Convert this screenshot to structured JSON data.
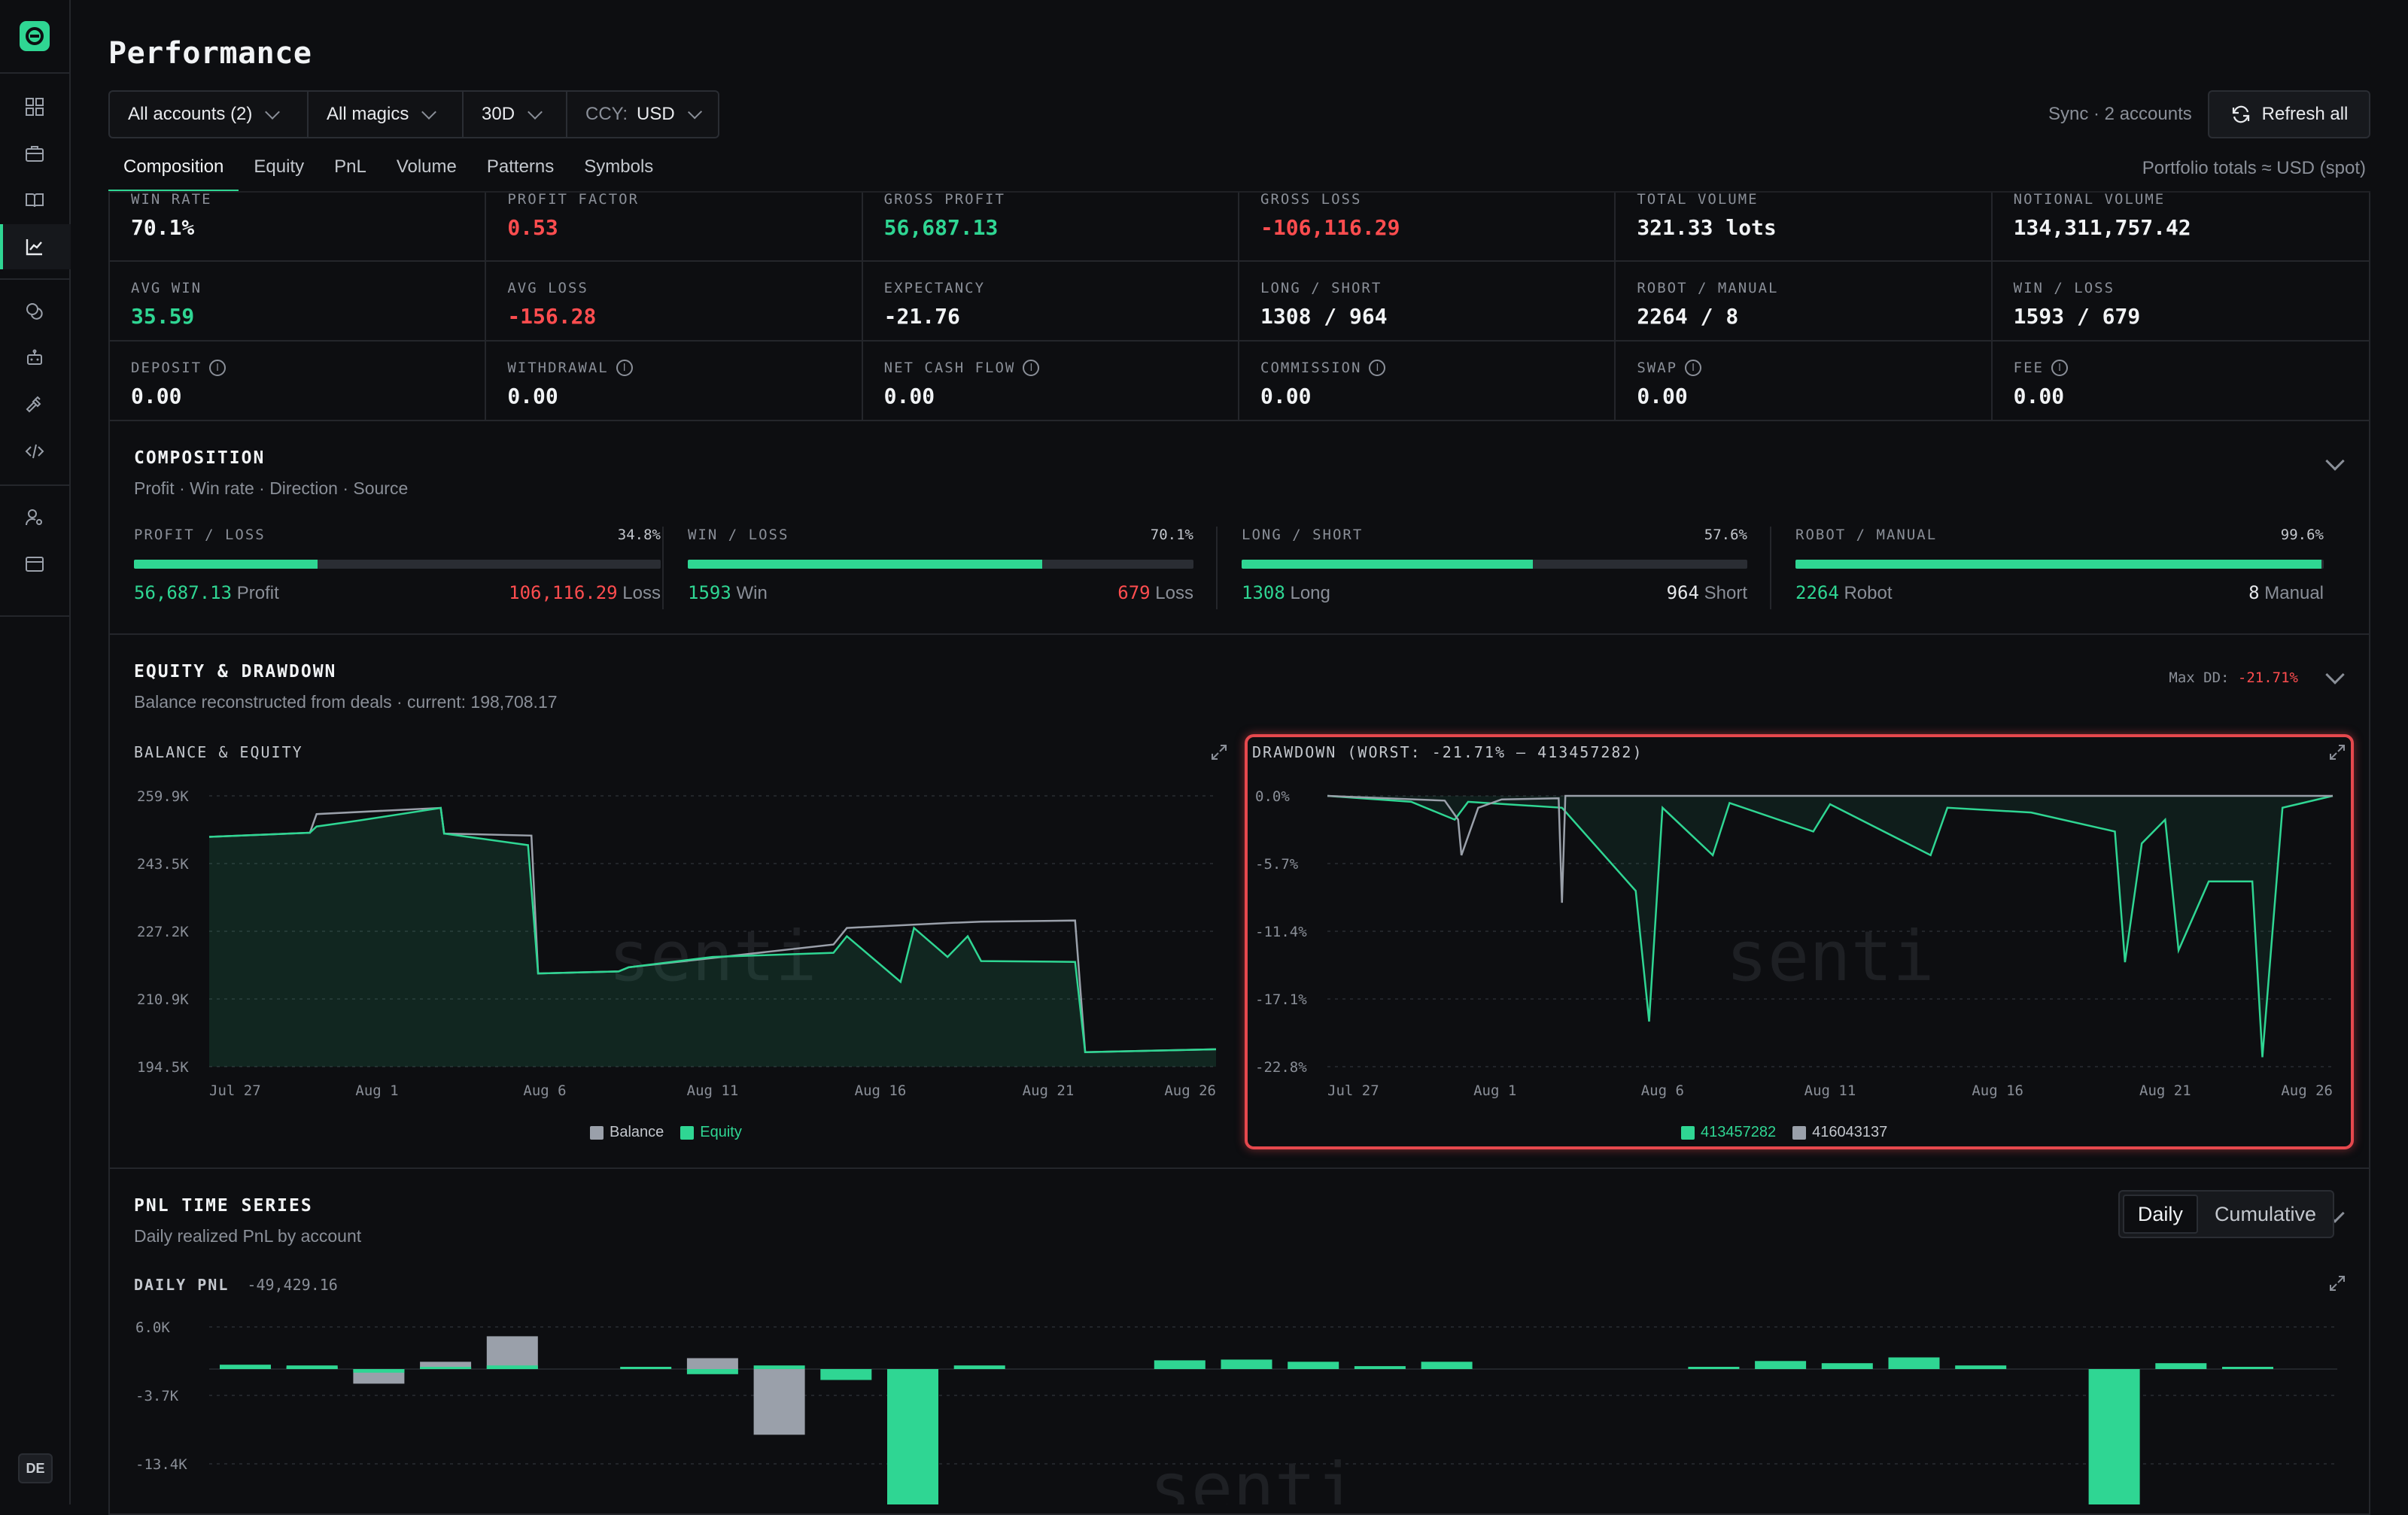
{
  "colors": {
    "accent": "#2fd693",
    "loss": "#ff4d4f",
    "balance": "#9aa0aa",
    "highlight": "#e5484d"
  },
  "sidebar": {
    "icons": [
      "dashboard-icon",
      "briefcase-icon",
      "book-icon",
      "chart-line-icon",
      "coins-icon",
      "robot-icon",
      "hammer-icon",
      "code-icon",
      "user-settings-icon",
      "window-icon"
    ],
    "active": "chart-line-icon",
    "locale_badge": "DE"
  },
  "header": {
    "title": "Performance",
    "filters": {
      "accounts": "All accounts (2)",
      "magics": "All magics",
      "period": "30D",
      "ccy_label": "CCY:",
      "ccy_value": "USD"
    },
    "sync_text": "Sync · 2 accounts",
    "refresh_label": "Refresh all"
  },
  "tabs": [
    "Composition",
    "Equity",
    "PnL",
    "Volume",
    "Patterns",
    "Symbols"
  ],
  "active_tab": "Composition",
  "portfolio_note": "Portfolio totals ≈ USD (spot)",
  "stats": [
    {
      "label": "WIN RATE",
      "value": "70.1%",
      "tone": ""
    },
    {
      "label": "PROFIT FACTOR",
      "value": "0.53",
      "tone": "red"
    },
    {
      "label": "GROSS PROFIT",
      "value": "56,687.13",
      "tone": "green"
    },
    {
      "label": "GROSS LOSS",
      "value": "-106,116.29",
      "tone": "red"
    },
    {
      "label": "TOTAL VOLUME",
      "value": "321.33 lots",
      "tone": ""
    },
    {
      "label": "NOTIONAL VOLUME",
      "value": "134,311,757.42",
      "tone": ""
    },
    {
      "label": "AVG WIN",
      "value": "35.59",
      "tone": "green"
    },
    {
      "label": "AVG LOSS",
      "value": "-156.28",
      "tone": "red"
    },
    {
      "label": "EXPECTANCY",
      "value": "-21.76",
      "tone": ""
    },
    {
      "label": "LONG / SHORT",
      "value": "1308 / 964",
      "tone": ""
    },
    {
      "label": "ROBOT / MANUAL",
      "value": "2264 / 8",
      "tone": ""
    },
    {
      "label": "WIN / LOSS",
      "value": "1593 / 679",
      "tone": ""
    },
    {
      "label": "DEPOSIT",
      "value": "0.00",
      "tone": "",
      "info": true
    },
    {
      "label": "WITHDRAWAL",
      "value": "0.00",
      "tone": "",
      "info": true
    },
    {
      "label": "NET CASH FLOW",
      "value": "0.00",
      "tone": "",
      "info": true
    },
    {
      "label": "COMMISSION",
      "value": "0.00",
      "tone": "",
      "info": true
    },
    {
      "label": "SWAP",
      "value": "0.00",
      "tone": "",
      "info": true
    },
    {
      "label": "FEE",
      "value": "0.00",
      "tone": "",
      "info": true
    }
  ],
  "composition": {
    "title": "COMPOSITION",
    "subtitle": "Profit · Win rate · Direction · Source",
    "cards": [
      {
        "label": "PROFIT / LOSS",
        "pct": "34.8%",
        "fill": 0.348,
        "left_num": "56,687.13",
        "left_text": "Profit",
        "right_num": "106,116.29",
        "right_text": "Loss",
        "right_red": true
      },
      {
        "label": "WIN / LOSS",
        "pct": "70.1%",
        "fill": 0.701,
        "left_num": "1593",
        "left_text": "Win",
        "right_num": "679",
        "right_text": "Loss",
        "right_red": true
      },
      {
        "label": "LONG / SHORT",
        "pct": "57.6%",
        "fill": 0.576,
        "left_num": "1308",
        "left_text": "Long",
        "right_num": "964",
        "right_text": "Short",
        "right_red": false
      },
      {
        "label": "ROBOT / MANUAL",
        "pct": "99.6%",
        "fill": 0.996,
        "left_num": "2264",
        "left_text": "Robot",
        "right_num": "8",
        "right_text": "Manual",
        "right_red": false
      }
    ]
  },
  "equity": {
    "title": "EQUITY & DRAWDOWN",
    "subtitle": "Balance reconstructed from deals · current: 198,708.17",
    "maxdd_label": "Max DD:",
    "maxdd_value": "-21.71%"
  },
  "watermark": "senti",
  "chart_data": [
    {
      "type": "area",
      "title": "BALANCE & EQUITY",
      "x_ticks": [
        "Jul 27",
        "Aug 1",
        "Aug 6",
        "Aug 11",
        "Aug 16",
        "Aug 21",
        "Aug 26"
      ],
      "y_ticks": [
        "259.9K",
        "243.5K",
        "227.2K",
        "210.9K",
        "194.5K"
      ],
      "ylim": [
        194500,
        259900
      ],
      "legend": "bottom-center",
      "series": [
        {
          "name": "Balance",
          "color": "#9aa0aa",
          "x_days": [
            0,
            3,
            3.2,
            6.9,
            7,
            9.6,
            9.8,
            12.2,
            12.5,
            18.6,
            19,
            22,
            23,
            25.8,
            26.1,
            30
          ],
          "values": [
            250000,
            251000,
            255500,
            257000,
            250800,
            250300,
            217000,
            217500,
            218500,
            224000,
            228000,
            229200,
            229500,
            229800,
            198000,
            198700
          ]
        },
        {
          "name": "Equity",
          "color": "#2fd693",
          "x_days": [
            0,
            3,
            3.2,
            4.5,
            6.9,
            7,
            9.5,
            9.8,
            12.2,
            12.5,
            15,
            18.6,
            19,
            20.6,
            21,
            22,
            22.6,
            23,
            25.8,
            26.1,
            30
          ],
          "values": [
            250000,
            251000,
            252500,
            254000,
            257000,
            250800,
            248000,
            217000,
            217500,
            218500,
            221000,
            222000,
            226000,
            215000,
            228000,
            221000,
            226000,
            220000,
            219800,
            198000,
            198700
          ]
        }
      ]
    },
    {
      "type": "line",
      "title": "DRAWDOWN (WORST: -21.71% — 413457282)",
      "x_ticks": [
        "Jul 27",
        "Aug 1",
        "Aug 6",
        "Aug 11",
        "Aug 16",
        "Aug 21",
        "Aug 26"
      ],
      "y_ticks": [
        "0.0%",
        "-5.7%",
        "-11.4%",
        "-17.1%",
        "-22.8%"
      ],
      "ylim": [
        -22.8,
        0
      ],
      "legend": "bottom-center",
      "series": [
        {
          "name": "413457282",
          "color": "#2fd693",
          "x_days": [
            0,
            2.5,
            3.8,
            4.2,
            7,
            9.2,
            9.6,
            10,
            11.5,
            12,
            14.5,
            15,
            18,
            18.5,
            21,
            23.5,
            23.8,
            24.3,
            25,
            25.4,
            26.3,
            27.6,
            27.9,
            28.5,
            30
          ],
          "values": [
            0,
            -0.5,
            -2,
            -0.5,
            -1,
            -8,
            -19,
            -1,
            -5,
            -0.6,
            -3,
            -0.7,
            -5,
            -1,
            -1.4,
            -3,
            -14,
            -4,
            -2,
            -13,
            -7.2,
            -7.2,
            -22,
            -1,
            0
          ]
        },
        {
          "name": "416043137",
          "color": "#9aa0aa",
          "x_days": [
            0,
            3.5,
            3.9,
            4,
            4.5,
            5.2,
            6.9,
            7,
            7.1,
            30
          ],
          "values": [
            0,
            -0.4,
            -2,
            -5,
            -1,
            -0.3,
            -0.2,
            -9,
            0,
            0
          ]
        }
      ]
    },
    {
      "type": "bar",
      "title": "DAILY PNL",
      "subtotal": "-49,429.16",
      "y_ticks": [
        "6.0K",
        "-3.7K",
        "-13.4K"
      ],
      "series": [
        {
          "name": "413457282",
          "color": "#2fd693",
          "x_days": [
            0,
            1,
            2,
            3,
            4,
            6,
            7,
            8,
            9,
            10,
            11,
            14,
            15,
            16,
            17,
            18,
            22,
            23,
            24,
            25,
            26,
            28,
            29,
            30
          ],
          "values": [
            600,
            500,
            -500,
            300,
            500,
            300,
            -700,
            500,
            -1500,
            -20000,
            500,
            1200,
            1300,
            1000,
            400,
            1000,
            200,
            1100,
            800,
            1600,
            500,
            -20000,
            800,
            300
          ]
        },
        {
          "name": "416043137",
          "color": "#9aa0aa",
          "x_days": [
            1,
            2,
            3,
            4,
            7,
            8
          ],
          "values": [
            100,
            -2000,
            1000,
            4500,
            1500,
            -9000
          ]
        }
      ]
    }
  ],
  "pnl": {
    "title": "PNL TIME SERIES",
    "subtitle": "Daily realized PnL by account",
    "toggle": [
      "Daily",
      "Cumulative"
    ],
    "active_toggle": "Daily"
  }
}
